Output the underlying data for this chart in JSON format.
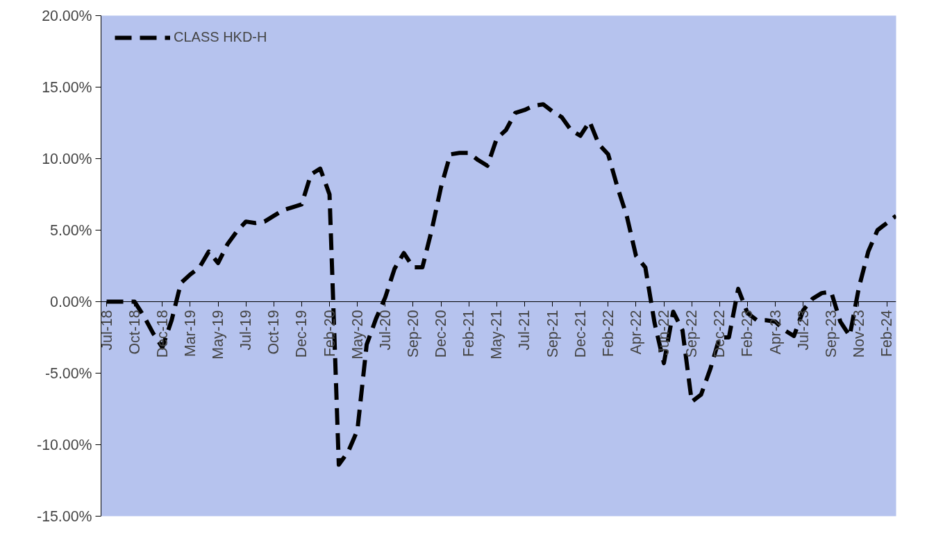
{
  "chart_data": {
    "type": "line",
    "categories": [
      "Jul-18",
      null,
      null,
      "Oct-18",
      null,
      null,
      "Dec-18",
      null,
      null,
      "Mar-19",
      null,
      null,
      "May-19",
      null,
      null,
      "Jul-19",
      null,
      null,
      "Oct-19",
      null,
      null,
      "Dec-19",
      null,
      null,
      "Feb-20",
      null,
      null,
      "May-20",
      null,
      null,
      "Jul-20",
      null,
      null,
      "Sep-20",
      null,
      null,
      "Dec-20",
      null,
      null,
      "Feb-21",
      null,
      null,
      "May-21",
      null,
      null,
      "Jul-21",
      null,
      null,
      "Sep-21",
      null,
      null,
      "Dec-21",
      null,
      null,
      "Feb-22",
      null,
      null,
      "Apr-22",
      null,
      null,
      "Jun-22",
      null,
      null,
      "Sep-22",
      null,
      null,
      "Dec-22",
      null,
      null,
      "Feb-23",
      null,
      null,
      "Apr-23",
      null,
      null,
      "Jul-23",
      null,
      null,
      "Sep-23",
      null,
      null,
      "Nov-23",
      null,
      null,
      "Feb-24",
      null
    ],
    "series": [
      {
        "name": "CLASS HKD-H",
        "color": "#000000",
        "values": [
          0,
          0,
          0,
          0,
          -1.0,
          -2.2,
          -3.2,
          -1.3,
          1.3,
          1.9,
          2.4,
          3.5,
          2.7,
          4.0,
          4.9,
          5.6,
          5.5,
          5.6,
          6.0,
          6.4,
          6.6,
          6.8,
          8.9,
          9.3,
          7.5,
          -11.4,
          -10.5,
          -9.0,
          -3.0,
          -1.2,
          0.3,
          2.3,
          3.4,
          2.4,
          2.4,
          5.0,
          8.0,
          10.3,
          10.4,
          10.4,
          9.9,
          9.5,
          11.4,
          12.0,
          13.2,
          13.4,
          13.7,
          13.8,
          13.3,
          12.9,
          12.0,
          11.6,
          12.6,
          11.0,
          10.3,
          8.0,
          6.0,
          3.2,
          2.4,
          -1.5,
          -4.3,
          -0.7,
          -2.0,
          -7.0,
          -6.5,
          -4.7,
          -2.5,
          -2.5,
          0.9,
          -0.8,
          -1.3,
          -1.3,
          -1.4,
          -2.0,
          -2.4,
          -0.6,
          0.2,
          0.6,
          0.7,
          -1.4,
          -2.4,
          1.0,
          3.5,
          5.0,
          5.5,
          6.0
        ]
      }
    ],
    "ylim": [
      -15,
      20
    ],
    "yticks": [
      {
        "value": -15,
        "label": "-15.00%"
      },
      {
        "value": -10,
        "label": "-10.00%"
      },
      {
        "value": -5,
        "label": "-5.00%"
      },
      {
        "value": 0,
        "label": "0.00%"
      },
      {
        "value": 5,
        "label": "5.00%"
      },
      {
        "value": 10,
        "label": "10.00%"
      },
      {
        "value": 15,
        "label": "15.00%"
      },
      {
        "value": 20,
        "label": "20.00%"
      }
    ],
    "legend": "top left",
    "line_style": "dashed",
    "grid": false,
    "marker": "none"
  }
}
